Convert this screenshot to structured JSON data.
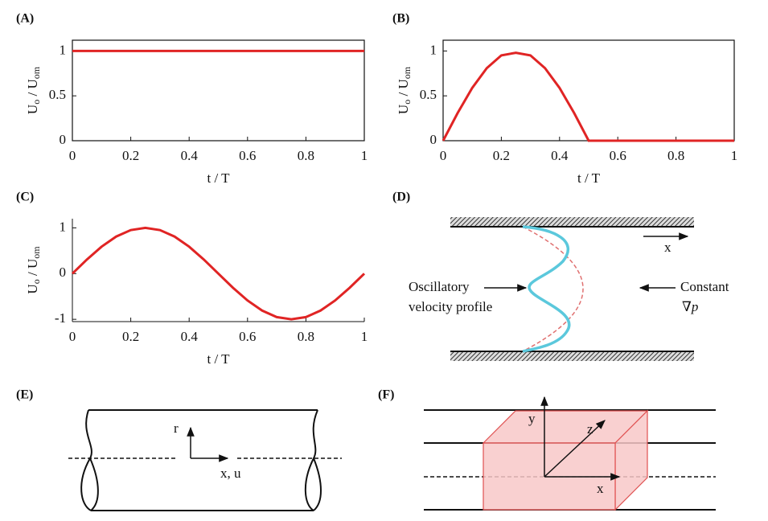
{
  "chart_data": [
    {
      "type": "line",
      "title": "(A)",
      "ylabel": [
        "U",
        "o",
        " / U",
        "om"
      ],
      "xlabel": "t / T",
      "x": [
        0,
        1
      ],
      "series": [
        {
          "color": "#e02424",
          "values": [
            1,
            1
          ]
        }
      ],
      "xlim": [
        0,
        1
      ],
      "ylim": [
        0,
        1.12
      ],
      "xticks": [
        0,
        0.2,
        0.4,
        0.6,
        0.8,
        1
      ],
      "yticks": [
        0,
        0.5,
        1
      ],
      "box": true
    },
    {
      "type": "line",
      "title": "(B)",
      "ylabel": [
        "U",
        "o",
        " / U",
        "om"
      ],
      "xlabel": "t / T",
      "x": [
        0,
        0.05,
        0.1,
        0.15,
        0.2,
        0.25,
        0.3,
        0.35,
        0.4,
        0.45,
        0.5,
        0.55,
        0.6,
        0.65,
        0.7,
        0.75,
        0.8,
        0.85,
        0.9,
        0.95,
        1
      ],
      "series": [
        {
          "color": "#e02424",
          "values": [
            0,
            0.309,
            0.588,
            0.809,
            0.951,
            0.98,
            0.951,
            0.809,
            0.588,
            0.309,
            0,
            0,
            0,
            0,
            0,
            0,
            0,
            0,
            0,
            0,
            0
          ]
        }
      ],
      "xlim": [
        0,
        1
      ],
      "ylim": [
        0,
        1.12
      ],
      "xticks": [
        0,
        0.2,
        0.4,
        0.6,
        0.8,
        1
      ],
      "yticks": [
        0,
        0.5,
        1
      ],
      "box": true
    },
    {
      "type": "line",
      "title": "(C)",
      "ylabel": [
        "U",
        "o",
        " / U",
        "om"
      ],
      "xlabel": "t / T",
      "x": [
        0,
        0.05,
        0.1,
        0.15,
        0.2,
        0.25,
        0.3,
        0.35,
        0.4,
        0.45,
        0.5,
        0.55,
        0.6,
        0.65,
        0.7,
        0.75,
        0.8,
        0.85,
        0.9,
        0.95,
        1
      ],
      "series": [
        {
          "color": "#e02424",
          "values": [
            0,
            0.309,
            0.588,
            0.809,
            0.951,
            1,
            0.951,
            0.809,
            0.588,
            0.309,
            0,
            -0.309,
            -0.588,
            -0.809,
            -0.951,
            -1,
            -0.951,
            -0.809,
            -0.588,
            -0.309,
            0
          ]
        }
      ],
      "xlim": [
        0,
        1
      ],
      "ylim": [
        -1.05,
        1.2
      ],
      "xticks": [
        0,
        0.2,
        0.4,
        0.6,
        0.8,
        1
      ],
      "yticks": [
        -1,
        0,
        1
      ],
      "box": false
    }
  ],
  "diagrams": {
    "D": {
      "label": "(D)",
      "axis": "x",
      "left": [
        "Oscillatory",
        "velocity profile"
      ],
      "right": [
        "Constant",
        "∇",
        "p"
      ]
    },
    "E": {
      "label": "(E)",
      "r": "r",
      "x": "x, u"
    },
    "F": {
      "label": "(F)",
      "y": "y",
      "z": "z",
      "x": "x"
    }
  }
}
